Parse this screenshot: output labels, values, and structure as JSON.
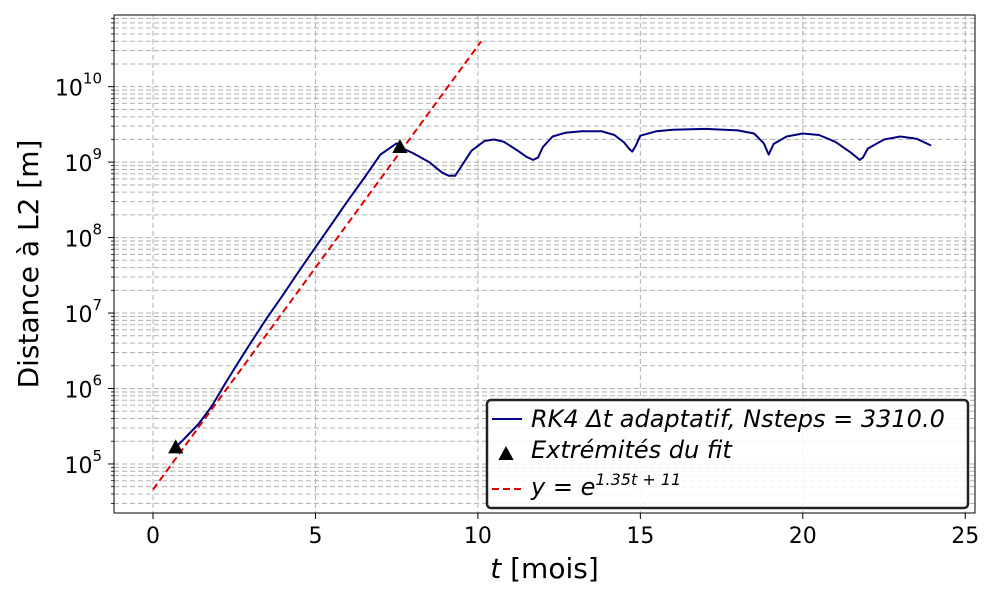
{
  "chart_data": {
    "type": "line",
    "xlabel_var": "t",
    "xlabel_unit": " [mois]",
    "ylabel": "Distance à L2 [m]",
    "xlim": [
      -1.2,
      25.3
    ],
    "ylim_log10": [
      4.35,
      10.95
    ],
    "yscale": "log",
    "grid": "major-and-minor dashed",
    "legend_location": "lower-right",
    "x_ticks": [
      0,
      5,
      10,
      15,
      20,
      25
    ],
    "x_tick_labels": [
      "0",
      "5",
      "10",
      "15",
      "20",
      "25"
    ],
    "y_ticks_exp": [
      5,
      6,
      7,
      8,
      9,
      10
    ],
    "y_tick_base": "10",
    "y_tick_exps": [
      "5",
      "6",
      "7",
      "8",
      "9",
      "10"
    ],
    "series": [
      {
        "name": "RK4 Δt adaptatif, Nsteps = 3310.0",
        "kind": "line",
        "color": "#000080",
        "x": [
          0.7,
          1.0,
          1.4,
          1.8,
          2.2,
          2.6,
          3.0,
          3.5,
          4.0,
          4.5,
          5.0,
          5.5,
          6.0,
          6.5,
          7.0,
          7.5,
          7.6,
          8.0,
          8.5,
          8.9,
          9.1,
          9.3,
          9.5,
          9.8,
          10.2,
          10.5,
          10.8,
          11.2,
          11.5,
          11.7,
          11.85,
          12.0,
          12.3,
          12.7,
          13.2,
          13.8,
          14.2,
          14.5,
          14.65,
          14.75,
          14.85,
          15.0,
          15.5,
          16.0,
          17.0,
          18.0,
          18.5,
          18.8,
          18.95,
          19.1,
          19.5,
          20.0,
          20.5,
          21.0,
          21.5,
          21.75,
          21.85,
          22.0,
          22.5,
          23.0,
          23.5,
          23.95
        ],
        "y_log10": [
          5.22,
          5.35,
          5.53,
          5.76,
          6.05,
          6.33,
          6.6,
          6.93,
          7.24,
          7.56,
          7.87,
          8.18,
          8.49,
          8.79,
          9.1,
          9.25,
          9.2,
          9.12,
          9.0,
          8.86,
          8.82,
          8.82,
          8.95,
          9.15,
          9.28,
          9.3,
          9.27,
          9.16,
          9.07,
          9.03,
          9.06,
          9.2,
          9.34,
          9.39,
          9.41,
          9.41,
          9.36,
          9.26,
          9.18,
          9.14,
          9.21,
          9.35,
          9.41,
          9.43,
          9.44,
          9.42,
          9.38,
          9.25,
          9.1,
          9.24,
          9.34,
          9.38,
          9.36,
          9.27,
          9.12,
          9.03,
          9.06,
          9.18,
          9.3,
          9.34,
          9.31,
          9.22
        ]
      },
      {
        "name": "Extrémités du fit",
        "kind": "markers",
        "marker": "triangle-up",
        "color": "#000000",
        "x": [
          0.7,
          7.6
        ],
        "y_log10": [
          5.22,
          9.2
        ]
      },
      {
        "name_prefix": "y = e",
        "name_sup": "1.35t + 11",
        "kind": "dashed-line",
        "color": "#e00000",
        "x": [
          0,
          10.1
        ],
        "y_log10": [
          4.66,
          10.6
        ]
      }
    ]
  }
}
